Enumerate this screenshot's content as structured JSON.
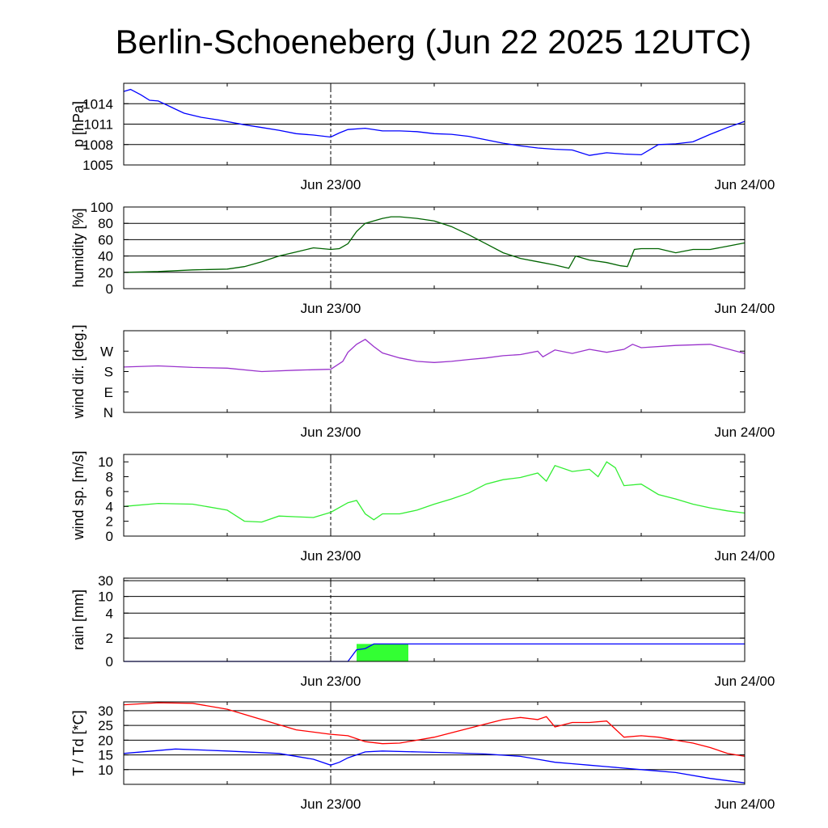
{
  "title": "Berlin-Schoeneberg (Jun 22 2025 12UTC)",
  "x_tick_labels": [
    "Jun 23/00",
    "Jun 24/00"
  ],
  "colors": {
    "pressure": "#0000ff",
    "humidity": "#006400",
    "wind_dir": "#9932cc",
    "wind_speed": "#33ee33",
    "rain_line": "#0000ff",
    "rain_fill": "#33ff33",
    "temperature": "#ff0000",
    "dewpoint": "#0000ff"
  },
  "chart_data": [
    {
      "type": "line",
      "title": "",
      "xlabel": "",
      "ylabel": "p [hPa]",
      "ylim": [
        1005,
        1017
      ],
      "yticks": [
        1005,
        1008,
        1011,
        1014
      ],
      "ytick_labels": [
        "1005",
        "1008",
        "1011",
        "1014"
      ],
      "hlines": [
        1005,
        1008,
        1011,
        1014
      ],
      "grid": true,
      "xlim": [
        -12,
        24
      ],
      "xunit": "hours from Jun 23/00 UTC",
      "series": [
        {
          "color": "#0000ff",
          "points": [
            [
              -12,
              1015.8
            ],
            [
              -11.6,
              1016.1
            ],
            [
              -11,
              1015.3
            ],
            [
              -10.5,
              1014.5
            ],
            [
              -10,
              1014.4
            ],
            [
              -9.5,
              1013.8
            ],
            [
              -9,
              1013.2
            ],
            [
              -8.5,
              1012.6
            ],
            [
              -7.5,
              1012.0
            ],
            [
              -6.5,
              1011.6
            ],
            [
              -5,
              1010.9
            ],
            [
              -4,
              1010.5
            ],
            [
              -3,
              1010.1
            ],
            [
              -2,
              1009.6
            ],
            [
              -1,
              1009.4
            ],
            [
              0,
              1009.1
            ],
            [
              0.5,
              1009.7
            ],
            [
              1,
              1010.2
            ],
            [
              2,
              1010.4
            ],
            [
              3,
              1010.0
            ],
            [
              4,
              1010.0
            ],
            [
              5,
              1009.9
            ],
            [
              6,
              1009.6
            ],
            [
              7,
              1009.5
            ],
            [
              8,
              1009.2
            ],
            [
              9,
              1008.7
            ],
            [
              10,
              1008.2
            ],
            [
              11,
              1007.8
            ],
            [
              12,
              1007.5
            ],
            [
              13,
              1007.3
            ],
            [
              14,
              1007.2
            ],
            [
              15,
              1006.4
            ],
            [
              16,
              1006.8
            ],
            [
              17,
              1006.6
            ],
            [
              18,
              1006.5
            ],
            [
              19,
              1008.0
            ],
            [
              20,
              1008.1
            ],
            [
              21,
              1008.4
            ],
            [
              22,
              1009.5
            ],
            [
              23,
              1010.5
            ],
            [
              24,
              1011.4
            ]
          ]
        }
      ]
    },
    {
      "type": "line",
      "title": "",
      "xlabel": "",
      "ylabel": "humidity [%]",
      "ylim": [
        0,
        100
      ],
      "yticks": [
        0,
        20,
        40,
        60,
        80,
        100
      ],
      "ytick_labels": [
        "0",
        "20",
        "40",
        "60",
        "80",
        "100"
      ],
      "hlines": [
        20,
        40,
        60,
        80
      ],
      "grid": true,
      "xlim": [
        -12,
        24
      ],
      "xunit": "hours from Jun 23/00 UTC",
      "series": [
        {
          "color": "#006400",
          "points": [
            [
              -12,
              20
            ],
            [
              -10,
              21
            ],
            [
              -8,
              23
            ],
            [
              -6,
              24
            ],
            [
              -5,
              27
            ],
            [
              -4,
              33
            ],
            [
              -3,
              40
            ],
            [
              -2,
              45
            ],
            [
              -1,
              50
            ],
            [
              0,
              48
            ],
            [
              0.5,
              49
            ],
            [
              1,
              55
            ],
            [
              1.5,
              70
            ],
            [
              2,
              80
            ],
            [
              3,
              86
            ],
            [
              3.5,
              88
            ],
            [
              4,
              88
            ],
            [
              5,
              86
            ],
            [
              6,
              83
            ],
            [
              7,
              76
            ],
            [
              8,
              66
            ],
            [
              9,
              55
            ],
            [
              10,
              44
            ],
            [
              11,
              37
            ],
            [
              12,
              33
            ],
            [
              13,
              29
            ],
            [
              13.8,
              25
            ],
            [
              14.2,
              40
            ],
            [
              15,
              35
            ],
            [
              16,
              32
            ],
            [
              16.8,
              28
            ],
            [
              17.2,
              27
            ],
            [
              17.6,
              48
            ],
            [
              18,
              49
            ],
            [
              19,
              49
            ],
            [
              20,
              44
            ],
            [
              21,
              48
            ],
            [
              22,
              48
            ],
            [
              23,
              52
            ],
            [
              24,
              56
            ]
          ]
        }
      ]
    },
    {
      "type": "line",
      "title": "",
      "xlabel": "",
      "ylabel": "wind dir. [deg.]",
      "ylim": [
        0,
        360
      ],
      "yticks": [
        0,
        90,
        180,
        270
      ],
      "ytick_labels": [
        "N",
        "E",
        "S",
        "W"
      ],
      "hlines": [],
      "grid": false,
      "xlim": [
        -12,
        24
      ],
      "xunit": "hours from Jun 23/00 UTC",
      "series": [
        {
          "color": "#9932cc",
          "points": [
            [
              -12,
              200
            ],
            [
              -10,
              205
            ],
            [
              -8,
              198
            ],
            [
              -6,
              195
            ],
            [
              -4,
              180
            ],
            [
              -2,
              186
            ],
            [
              0,
              190
            ],
            [
              0.7,
              225
            ],
            [
              1,
              265
            ],
            [
              1.5,
              300
            ],
            [
              2,
              322
            ],
            [
              2.5,
              290
            ],
            [
              3,
              262
            ],
            [
              4,
              240
            ],
            [
              5,
              225
            ],
            [
              6,
              220
            ],
            [
              7,
              225
            ],
            [
              8,
              233
            ],
            [
              9,
              240
            ],
            [
              10,
              250
            ],
            [
              11,
              255
            ],
            [
              12,
              270
            ],
            [
              12.3,
              245
            ],
            [
              13,
              275
            ],
            [
              14,
              260
            ],
            [
              15,
              278
            ],
            [
              16,
              265
            ],
            [
              17,
              278
            ],
            [
              17.5,
              300
            ],
            [
              18,
              285
            ],
            [
              20,
              295
            ],
            [
              22,
              300
            ],
            [
              24,
              260
            ]
          ]
        }
      ]
    },
    {
      "type": "line",
      "title": "",
      "xlabel": "",
      "ylabel": "wind sp. [m/s]",
      "ylim": [
        0,
        11
      ],
      "yticks": [
        0,
        2,
        4,
        6,
        8,
        10
      ],
      "ytick_labels": [
        "0",
        "2",
        "4",
        "6",
        "8",
        "10"
      ],
      "hlines": [],
      "grid": false,
      "xlim": [
        -12,
        24
      ],
      "xunit": "hours from Jun 23/00 UTC",
      "series": [
        {
          "color": "#33ee33",
          "points": [
            [
              -12,
              4.0
            ],
            [
              -10,
              4.4
            ],
            [
              -8,
              4.3
            ],
            [
              -6,
              3.5
            ],
            [
              -5,
              2.0
            ],
            [
              -4,
              1.9
            ],
            [
              -3,
              2.7
            ],
            [
              -2,
              2.6
            ],
            [
              -1,
              2.5
            ],
            [
              0,
              3.2
            ],
            [
              1,
              4.5
            ],
            [
              1.5,
              4.8
            ],
            [
              2,
              3.0
            ],
            [
              2.5,
              2.2
            ],
            [
              3,
              3.0
            ],
            [
              4,
              3.0
            ],
            [
              5,
              3.5
            ],
            [
              6,
              4.3
            ],
            [
              7,
              5.0
            ],
            [
              8,
              5.8
            ],
            [
              9,
              7.0
            ],
            [
              10,
              7.6
            ],
            [
              11,
              7.9
            ],
            [
              12,
              8.5
            ],
            [
              12.5,
              7.4
            ],
            [
              13,
              9.5
            ],
            [
              14,
              8.7
            ],
            [
              15,
              9.0
            ],
            [
              15.5,
              8.0
            ],
            [
              16,
              10.0
            ],
            [
              16.5,
              9.2
            ],
            [
              17,
              6.8
            ],
            [
              18,
              7.0
            ],
            [
              19,
              5.6
            ],
            [
              20,
              5.0
            ],
            [
              21,
              4.3
            ],
            [
              22,
              3.8
            ],
            [
              23,
              3.4
            ],
            [
              24,
              3.1
            ]
          ]
        }
      ]
    },
    {
      "type": "area",
      "title": "",
      "xlabel": "",
      "ylabel": "rain [mm]",
      "ylim": [
        0,
        35
      ],
      "yscale": "custom",
      "yticks": [
        0,
        2,
        4,
        10,
        30
      ],
      "ytick_labels": [
        "0",
        "2",
        "4",
        "10",
        "30"
      ],
      "hlines": [
        2,
        4,
        10,
        30
      ],
      "grid": true,
      "xlim": [
        -12,
        24
      ],
      "xunit": "hours from Jun 23/00 UTC",
      "series": [
        {
          "name": "accumulated",
          "color": "#0000ff",
          "points": [
            [
              -12,
              0
            ],
            [
              1,
              0
            ],
            [
              1.5,
              1.0
            ],
            [
              2,
              1.1
            ],
            [
              2.5,
              1.5
            ],
            [
              24,
              1.5
            ]
          ]
        }
      ],
      "bars": [
        {
          "x_start": 1.5,
          "x_end": 4.5,
          "value": 1.5,
          "color": "#33ff33"
        }
      ]
    },
    {
      "type": "line",
      "title": "",
      "xlabel": "",
      "ylabel": "T / Td [*C]",
      "ylim": [
        5,
        33
      ],
      "yticks": [
        10,
        15,
        20,
        25,
        30
      ],
      "ytick_labels": [
        "10",
        "15",
        "20",
        "25",
        "30"
      ],
      "hlines": [
        10,
        15,
        20,
        25,
        30
      ],
      "grid": true,
      "xlim": [
        -12,
        24
      ],
      "xunit": "hours from Jun 23/00 UTC",
      "series": [
        {
          "color": "#ff0000",
          "points": [
            [
              -12,
              32.0
            ],
            [
              -10,
              32.7
            ],
            [
              -8,
              32.5
            ],
            [
              -6,
              30.5
            ],
            [
              -4,
              27.0
            ],
            [
              -2,
              23.5
            ],
            [
              0,
              22.0
            ],
            [
              1,
              21.5
            ],
            [
              2,
              19.5
            ],
            [
              3,
              18.8
            ],
            [
              4,
              19.0
            ],
            [
              5,
              20.0
            ],
            [
              6,
              21.0
            ],
            [
              7,
              22.5
            ],
            [
              8,
              24.0
            ],
            [
              9,
              25.5
            ],
            [
              10,
              27.0
            ],
            [
              11,
              27.7
            ],
            [
              12,
              27.0
            ],
            [
              12.5,
              28.0
            ],
            [
              13,
              24.5
            ],
            [
              14,
              26.0
            ],
            [
              15,
              26.0
            ],
            [
              16,
              26.5
            ],
            [
              17,
              21.0
            ],
            [
              18,
              21.5
            ],
            [
              19,
              21.0
            ],
            [
              20,
              20.0
            ],
            [
              21,
              19.0
            ],
            [
              22,
              17.5
            ],
            [
              23,
              15.5
            ],
            [
              24,
              14.5
            ]
          ]
        },
        {
          "color": "#0000ff",
          "points": [
            [
              -12,
              15.5
            ],
            [
              -9,
              17.0
            ],
            [
              -6,
              16.3
            ],
            [
              -3,
              15.5
            ],
            [
              -1,
              13.5
            ],
            [
              0,
              11.5
            ],
            [
              0.5,
              12.5
            ],
            [
              1,
              14.0
            ],
            [
              2,
              16.0
            ],
            [
              3,
              16.3
            ],
            [
              5,
              16.0
            ],
            [
              7,
              15.7
            ],
            [
              9,
              15.3
            ],
            [
              11,
              14.5
            ],
            [
              12,
              13.5
            ],
            [
              13,
              12.5
            ],
            [
              14,
              12.0
            ],
            [
              15,
              11.5
            ],
            [
              16,
              11.0
            ],
            [
              18,
              10.0
            ],
            [
              20,
              9.0
            ],
            [
              22,
              7.0
            ],
            [
              24,
              5.5
            ]
          ]
        }
      ]
    }
  ]
}
